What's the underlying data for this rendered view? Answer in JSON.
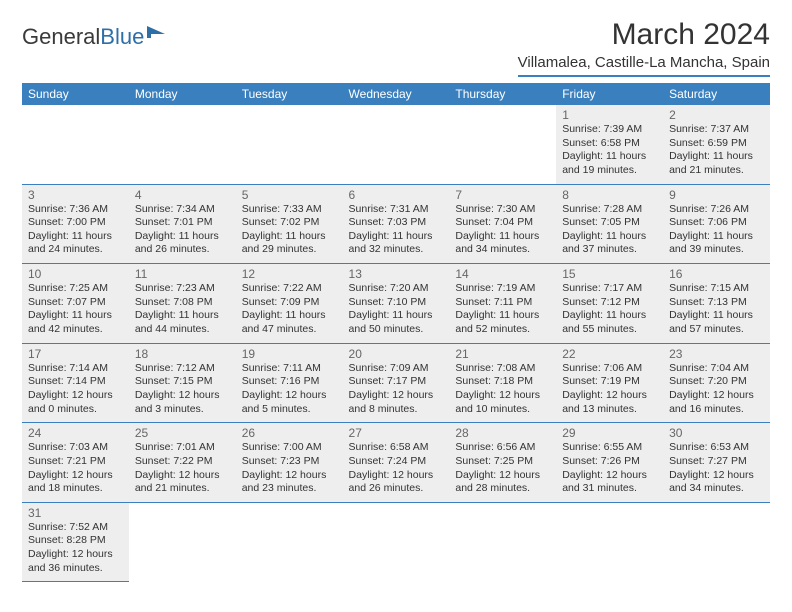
{
  "logo": {
    "part1": "General",
    "part2": "Blue"
  },
  "title": "March 2024",
  "location": "Villamalea, Castille-La Mancha, Spain",
  "colors": {
    "header_bg": "#3a80bf",
    "header_text": "#ffffff",
    "cell_bg": "#eeeeee",
    "border": "#3a80bf",
    "logo_blue": "#2f6fa8",
    "text": "#333333"
  },
  "weekdays": [
    "Sunday",
    "Monday",
    "Tuesday",
    "Wednesday",
    "Thursday",
    "Friday",
    "Saturday"
  ],
  "days": {
    "1": {
      "sunrise": "7:39 AM",
      "sunset": "6:58 PM",
      "daylight": "11 hours and 19 minutes."
    },
    "2": {
      "sunrise": "7:37 AM",
      "sunset": "6:59 PM",
      "daylight": "11 hours and 21 minutes."
    },
    "3": {
      "sunrise": "7:36 AM",
      "sunset": "7:00 PM",
      "daylight": "11 hours and 24 minutes."
    },
    "4": {
      "sunrise": "7:34 AM",
      "sunset": "7:01 PM",
      "daylight": "11 hours and 26 minutes."
    },
    "5": {
      "sunrise": "7:33 AM",
      "sunset": "7:02 PM",
      "daylight": "11 hours and 29 minutes."
    },
    "6": {
      "sunrise": "7:31 AM",
      "sunset": "7:03 PM",
      "daylight": "11 hours and 32 minutes."
    },
    "7": {
      "sunrise": "7:30 AM",
      "sunset": "7:04 PM",
      "daylight": "11 hours and 34 minutes."
    },
    "8": {
      "sunrise": "7:28 AM",
      "sunset": "7:05 PM",
      "daylight": "11 hours and 37 minutes."
    },
    "9": {
      "sunrise": "7:26 AM",
      "sunset": "7:06 PM",
      "daylight": "11 hours and 39 minutes."
    },
    "10": {
      "sunrise": "7:25 AM",
      "sunset": "7:07 PM",
      "daylight": "11 hours and 42 minutes."
    },
    "11": {
      "sunrise": "7:23 AM",
      "sunset": "7:08 PM",
      "daylight": "11 hours and 44 minutes."
    },
    "12": {
      "sunrise": "7:22 AM",
      "sunset": "7:09 PM",
      "daylight": "11 hours and 47 minutes."
    },
    "13": {
      "sunrise": "7:20 AM",
      "sunset": "7:10 PM",
      "daylight": "11 hours and 50 minutes."
    },
    "14": {
      "sunrise": "7:19 AM",
      "sunset": "7:11 PM",
      "daylight": "11 hours and 52 minutes."
    },
    "15": {
      "sunrise": "7:17 AM",
      "sunset": "7:12 PM",
      "daylight": "11 hours and 55 minutes."
    },
    "16": {
      "sunrise": "7:15 AM",
      "sunset": "7:13 PM",
      "daylight": "11 hours and 57 minutes."
    },
    "17": {
      "sunrise": "7:14 AM",
      "sunset": "7:14 PM",
      "daylight": "12 hours and 0 minutes."
    },
    "18": {
      "sunrise": "7:12 AM",
      "sunset": "7:15 PM",
      "daylight": "12 hours and 3 minutes."
    },
    "19": {
      "sunrise": "7:11 AM",
      "sunset": "7:16 PM",
      "daylight": "12 hours and 5 minutes."
    },
    "20": {
      "sunrise": "7:09 AM",
      "sunset": "7:17 PM",
      "daylight": "12 hours and 8 minutes."
    },
    "21": {
      "sunrise": "7:08 AM",
      "sunset": "7:18 PM",
      "daylight": "12 hours and 10 minutes."
    },
    "22": {
      "sunrise": "7:06 AM",
      "sunset": "7:19 PM",
      "daylight": "12 hours and 13 minutes."
    },
    "23": {
      "sunrise": "7:04 AM",
      "sunset": "7:20 PM",
      "daylight": "12 hours and 16 minutes."
    },
    "24": {
      "sunrise": "7:03 AM",
      "sunset": "7:21 PM",
      "daylight": "12 hours and 18 minutes."
    },
    "25": {
      "sunrise": "7:01 AM",
      "sunset": "7:22 PM",
      "daylight": "12 hours and 21 minutes."
    },
    "26": {
      "sunrise": "7:00 AM",
      "sunset": "7:23 PM",
      "daylight": "12 hours and 23 minutes."
    },
    "27": {
      "sunrise": "6:58 AM",
      "sunset": "7:24 PM",
      "daylight": "12 hours and 26 minutes."
    },
    "28": {
      "sunrise": "6:56 AM",
      "sunset": "7:25 PM",
      "daylight": "12 hours and 28 minutes."
    },
    "29": {
      "sunrise": "6:55 AM",
      "sunset": "7:26 PM",
      "daylight": "12 hours and 31 minutes."
    },
    "30": {
      "sunrise": "6:53 AM",
      "sunset": "7:27 PM",
      "daylight": "12 hours and 34 minutes."
    },
    "31": {
      "sunrise": "7:52 AM",
      "sunset": "8:28 PM",
      "daylight": "12 hours and 36 minutes."
    }
  },
  "layout": {
    "first_weekday_index": 5,
    "num_days": 31,
    "labels": {
      "sunrise": "Sunrise: ",
      "sunset": "Sunset: ",
      "daylight": "Daylight: "
    }
  }
}
